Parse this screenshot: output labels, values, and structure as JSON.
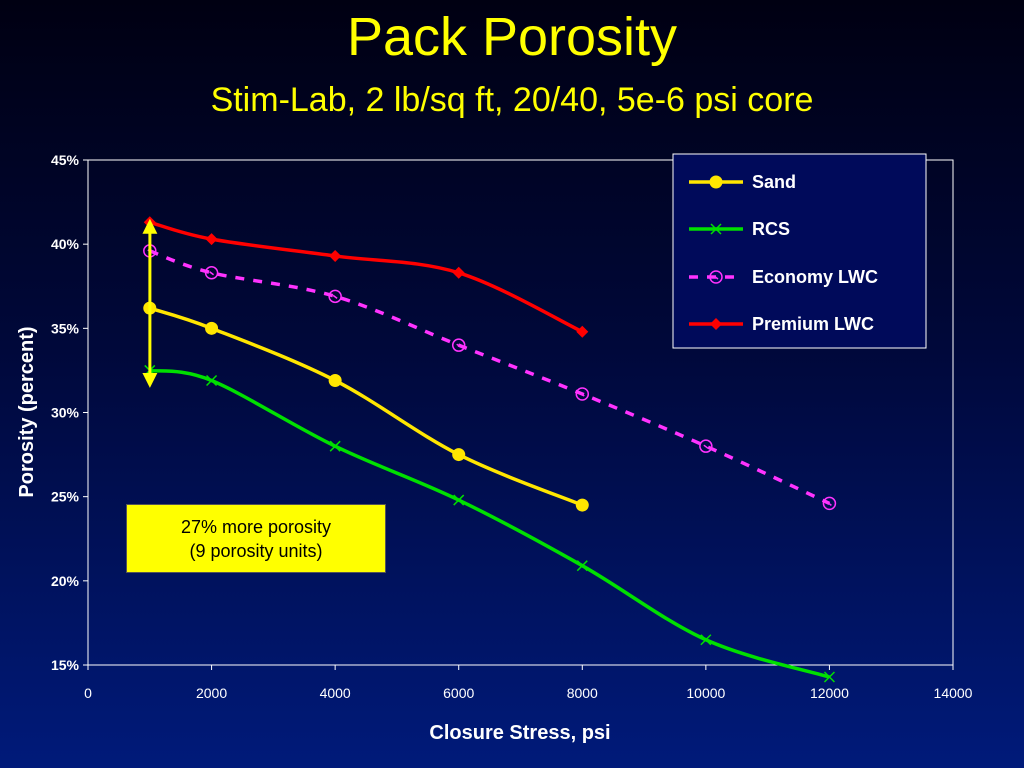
{
  "slide": {
    "title": "Pack Porosity",
    "subtitle": "Stim-Lab, 2 lb/sq ft, 20/40, 5e-6 psi core"
  },
  "colors": {
    "background_top": "#000012",
    "background_bottom": "#001a7a",
    "title": "#ffff00",
    "sand": "#ffe600",
    "rcs": "#00e000",
    "economy_lwc": "#ff33ff",
    "premium_lwc": "#ff0000",
    "arrow": "#ffff00",
    "annotation_bg": "#ffff00"
  },
  "annotation": {
    "line1": "27% more porosity",
    "line2": "(9 porosity units)"
  },
  "chart_data": {
    "type": "line",
    "xlabel": "Closure Stress, psi",
    "ylabel": "Porosity (percent)",
    "xlim": [
      0,
      14000
    ],
    "ylim": [
      0.15,
      0.45
    ],
    "x_ticks": [
      0,
      2000,
      4000,
      6000,
      8000,
      10000,
      12000,
      14000
    ],
    "x_tick_labels": [
      "0",
      "2000",
      "4000",
      "6000",
      "8000",
      "10000",
      "12000",
      "14000"
    ],
    "y_ticks": [
      0.15,
      0.2,
      0.25,
      0.3,
      0.35,
      0.4,
      0.45
    ],
    "y_tick_labels": [
      "15%",
      "20%",
      "25%",
      "30%",
      "35%",
      "40%",
      "45%"
    ],
    "grid": false,
    "legend_position": "top-right",
    "series": [
      {
        "name": "Sand",
        "marker": "circle",
        "line": "solid",
        "color": "#ffe600",
        "x": [
          1000,
          2000,
          4000,
          6000,
          8000
        ],
        "y": [
          0.362,
          0.35,
          0.319,
          0.275,
          0.245
        ]
      },
      {
        "name": "RCS",
        "marker": "x",
        "line": "solid",
        "color": "#00e000",
        "x": [
          1000,
          2000,
          4000,
          6000,
          8000,
          10000,
          12000
        ],
        "y": [
          0.325,
          0.319,
          0.28,
          0.248,
          0.209,
          0.165,
          0.141
        ]
      },
      {
        "name": "Economy LWC",
        "marker": "open-circle",
        "line": "dashed",
        "color": "#ff33ff",
        "x": [
          1000,
          2000,
          4000,
          6000,
          8000,
          10000,
          12000
        ],
        "y": [
          0.396,
          0.383,
          0.369,
          0.34,
          0.311,
          0.28,
          0.246
        ]
      },
      {
        "name": "Premium LWC",
        "marker": "diamond",
        "line": "solid",
        "color": "#ff0000",
        "x": [
          1000,
          2000,
          4000,
          6000,
          8000
        ],
        "y": [
          0.413,
          0.403,
          0.393,
          0.383,
          0.348
        ]
      }
    ],
    "range_arrow": {
      "x": 500,
      "y_low": 0.325,
      "y_high": 0.413
    }
  }
}
